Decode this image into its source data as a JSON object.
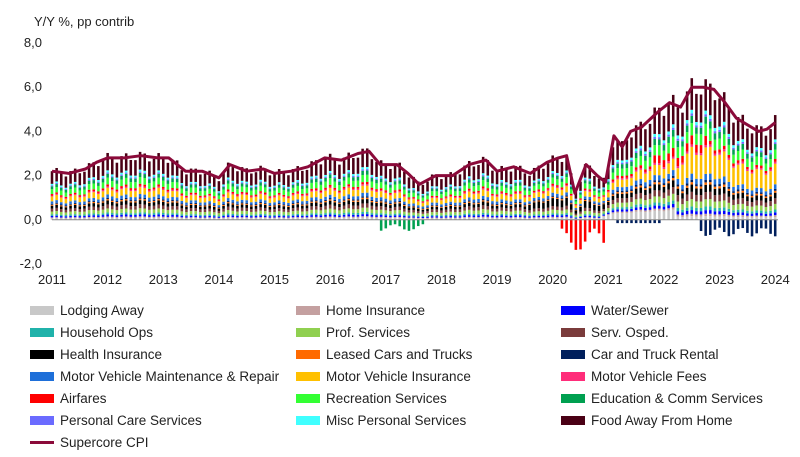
{
  "chart_data": {
    "type": "bar",
    "subtype": "stacked-bar-with-line",
    "ylabel": "Y/Y %, pp contrib",
    "ylim": [
      -2.0,
      8.0
    ],
    "yticks": [
      "8,0",
      "6,0",
      "4,0",
      "2,0",
      "0,0",
      "-2,0"
    ],
    "ytick_values": [
      8,
      6,
      4,
      2,
      0,
      -2
    ],
    "xlim": [
      2011.0,
      2024.05
    ],
    "xticks": [
      "2011",
      "2012",
      "2013",
      "2014",
      "2015",
      "2016",
      "2017",
      "2018",
      "2019",
      "2020",
      "2021",
      "2022",
      "2023",
      "2024"
    ],
    "components": [
      {
        "name": "Lodging Away",
        "color": "#c8c8c8"
      },
      {
        "name": "Home Insurance",
        "color": "#c4a0a0"
      },
      {
        "name": "Water/Sewer",
        "color": "#0000ff"
      },
      {
        "name": "Household Ops",
        "color": "#20b2aa"
      },
      {
        "name": "Prof. Services",
        "color": "#90d050"
      },
      {
        "name": "Serv. Osped.",
        "color": "#7a3b3b"
      },
      {
        "name": "Health Insurance",
        "color": "#000000"
      },
      {
        "name": "Leased Cars and Trucks",
        "color": "#ff6a00"
      },
      {
        "name": "Car and Truck Rental",
        "color": "#001f5c"
      },
      {
        "name": "Motor Vehicle Maintenance & Repair",
        "color": "#1e6fd9"
      },
      {
        "name": "Motor Vehicle Insurance",
        "color": "#ffc000"
      },
      {
        "name": "Motor Vehicle Fees",
        "color": "#ff2d7a"
      },
      {
        "name": "Airfares",
        "color": "#ff0000"
      },
      {
        "name": "Recreation Services",
        "color": "#33ff33"
      },
      {
        "name": "Education & Comm Services",
        "color": "#00a050"
      },
      {
        "name": "Personal Care Services",
        "color": "#6b6bff"
      },
      {
        "name": "Misc Personal Services",
        "color": "#40ffff"
      },
      {
        "name": "Food Away From Home",
        "color": "#4a0015"
      }
    ],
    "line_series": {
      "name": "Supercore CPI",
      "color": "#8b0a3a",
      "x": [
        2011.0,
        2011.3,
        2011.6,
        2011.8,
        2012.0,
        2012.3,
        2012.6,
        2012.9,
        2013.1,
        2013.4,
        2013.7,
        2014.0,
        2014.2,
        2014.5,
        2014.8,
        2015.0,
        2015.3,
        2015.6,
        2015.9,
        2016.2,
        2016.5,
        2016.7,
        2016.9,
        2017.2,
        2017.4,
        2017.6,
        2017.9,
        2018.2,
        2018.5,
        2018.8,
        2019.0,
        2019.3,
        2019.6,
        2019.9,
        2020.1,
        2020.25,
        2020.4,
        2020.6,
        2020.8,
        2020.95,
        2021.1,
        2021.25,
        2021.4,
        2021.6,
        2021.9,
        2022.1,
        2022.3,
        2022.5,
        2022.7,
        2022.9,
        2023.1,
        2023.3,
        2023.5,
        2023.7,
        2023.85,
        2024.0
      ],
      "values": [
        2.2,
        2.1,
        2.3,
        2.6,
        2.8,
        2.8,
        2.9,
        2.8,
        2.8,
        2.2,
        2.2,
        1.9,
        2.5,
        2.2,
        2.3,
        2.1,
        2.2,
        2.4,
        2.8,
        2.7,
        3.0,
        3.1,
        2.5,
        2.5,
        2.1,
        1.6,
        2.0,
        2.0,
        2.5,
        2.7,
        2.2,
        2.4,
        2.1,
        2.6,
        2.8,
        2.9,
        1.2,
        2.5,
        2.0,
        1.7,
        3.8,
        3.3,
        4.0,
        4.2,
        4.9,
        5.3,
        5.1,
        6.0,
        6.0,
        5.9,
        5.3,
        4.6,
        4.3,
        4.0,
        4.1,
        4.4
      ]
    },
    "legend_position": "bottom"
  },
  "legend_labels": [
    "Lodging Away",
    "Home Insurance",
    "Water/Sewer",
    "Household Ops",
    "Prof. Services",
    "Serv. Osped.",
    "Health Insurance",
    "Leased Cars and Trucks",
    "Car and Truck Rental",
    "Motor Vehicle Maintenance & Repair",
    "Motor Vehicle Insurance",
    "Motor Vehicle Fees",
    "Airfares",
    "Recreation Services",
    "Education & Comm Services",
    "Personal Care Services",
    "Misc Personal Services",
    "Food Away From Home",
    "Supercore CPI"
  ]
}
